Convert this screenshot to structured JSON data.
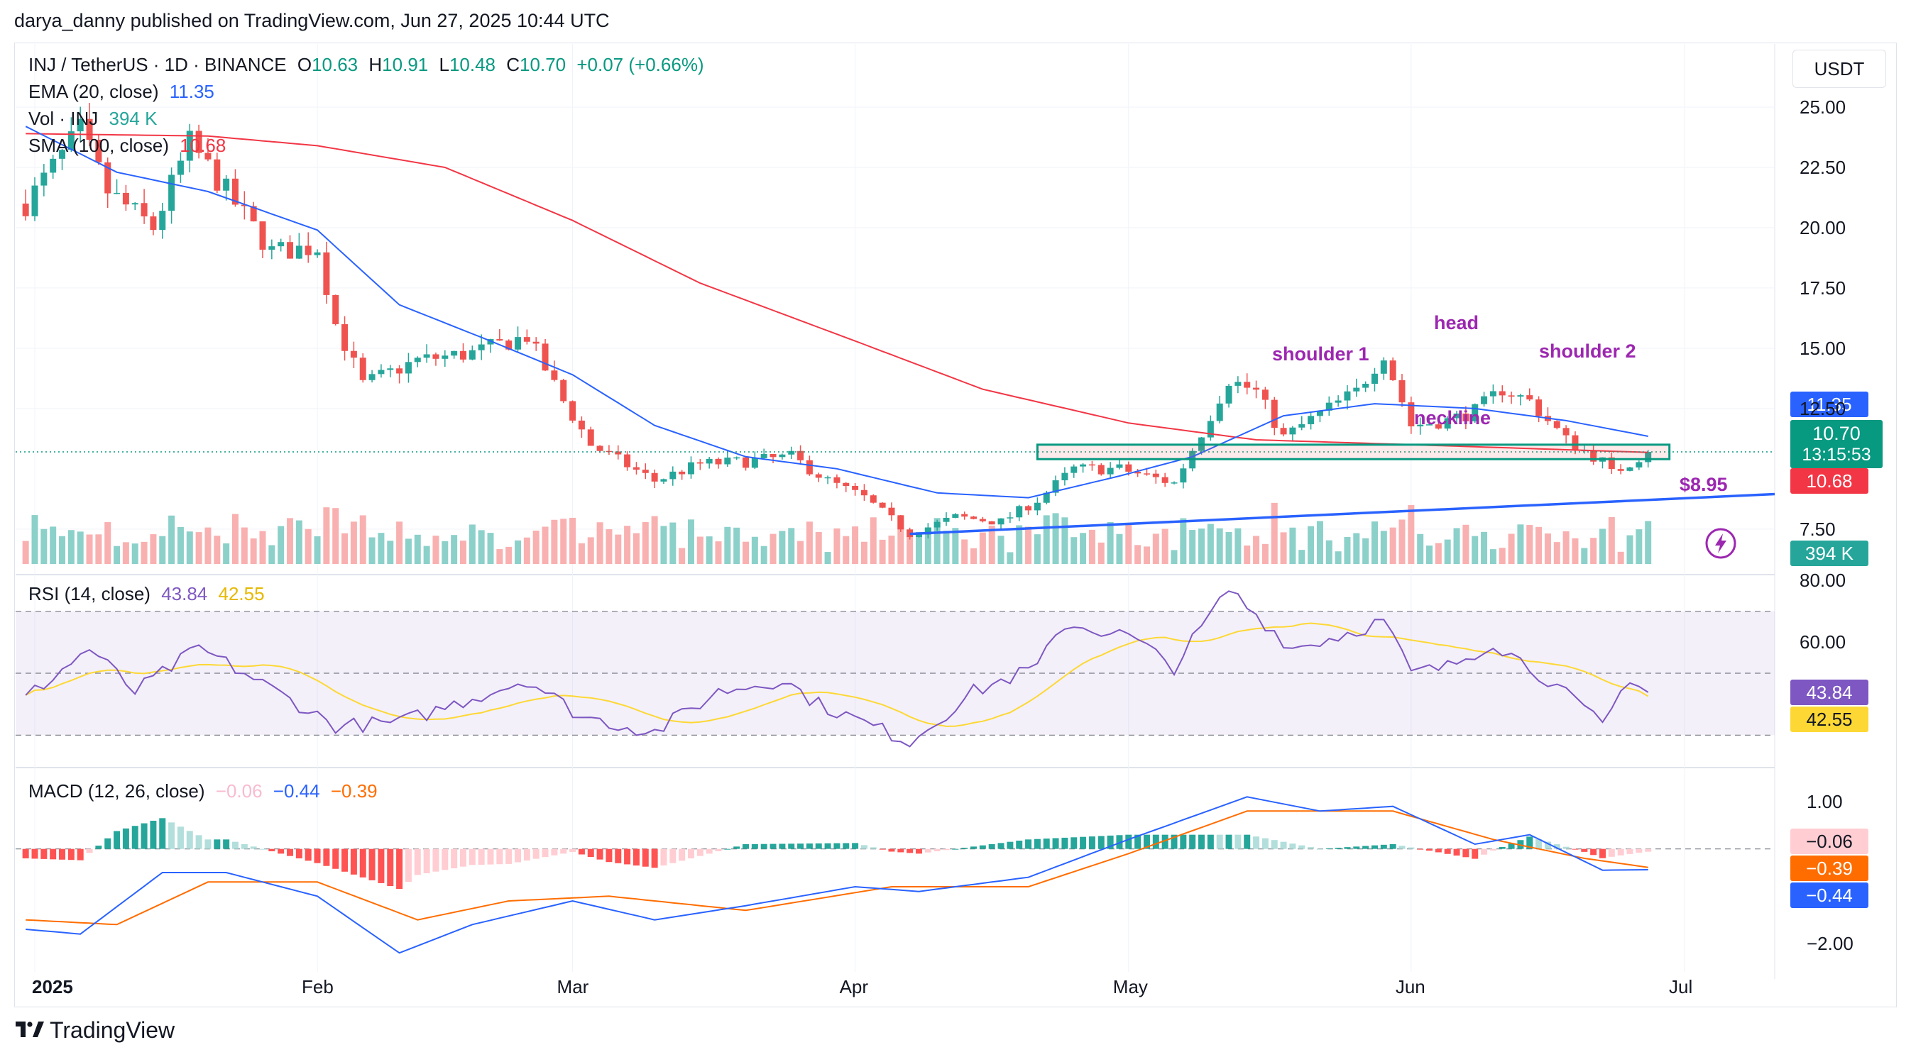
{
  "credit": "darya_danny published on TradingView.com, Jun 27, 2025 10:44 UTC",
  "currency_button": "USDT",
  "brand": "TradingView",
  "legend": {
    "symbol": "INJ / TetherUS · 1D · BINANCE",
    "o_label": "O",
    "o": "10.63",
    "h_label": "H",
    "h": "10.91",
    "l_label": "L",
    "l": "10.48",
    "c_label": "C",
    "c": "10.70",
    "change": "+0.07 (+0.66%)",
    "ema_label": "EMA (20, close)",
    "ema_value": "11.35",
    "vol_label": "Vol · INJ",
    "vol_value": "394 K",
    "sma_label": "SMA (100, close)",
    "sma_value": "10.68",
    "rsi_label": "RSI (14, close)",
    "rsi_value": "43.84",
    "rsi_ma_value": "42.55",
    "macd_label": "MACD (12, 26, close)",
    "macd_hist": "−0.06",
    "macd_line": "−0.44",
    "macd_signal": "−0.39"
  },
  "annotations": {
    "shoulder1": "shoulder 1",
    "head": "head",
    "shoulder2": "shoulder 2",
    "neckline": "neckline",
    "low_price": "$8.95"
  },
  "price_pills": {
    "ema": "11.35",
    "close": "10.70",
    "countdown": "13:15:53",
    "sma": "10.68",
    "volume": "394 K",
    "rsi": "43.84",
    "rsi_ma": "42.55",
    "macd_hist": "−0.06",
    "macd_signal": "−0.39",
    "macd_line": "−0.44"
  },
  "colors": {
    "up": "#26a69a",
    "down": "#ef5350",
    "ema": "#2962ff",
    "sma": "#f23645",
    "rsi": "#7e57c2",
    "rsi_ma": "#fdd835",
    "macd": "#2962ff",
    "signal": "#ff6d00",
    "annotation": "#9c27b0",
    "box": "#089981",
    "trendline": "#2962ff"
  },
  "chart_data": [
    {
      "type": "candlestick",
      "title": "INJ / TetherUS · 1D · BINANCE",
      "x_axis_labels": [
        "2025",
        "Feb",
        "Mar",
        "Apr",
        "May",
        "Jun",
        "Jul"
      ],
      "y_axis_labels": [
        "25.00",
        "22.50",
        "20.00",
        "17.50",
        "15.00",
        "12.50",
        "7.50"
      ],
      "ylim": [
        6.2,
        26.5
      ],
      "anchors_close": [
        [
          "2024-12-31",
          21.0
        ],
        [
          "2025-01-06",
          24.0
        ],
        [
          "2025-01-09",
          21.5
        ],
        [
          "2025-01-14",
          20.0
        ],
        [
          "2025-01-18",
          23.5
        ],
        [
          "2025-01-22",
          21.5
        ],
        [
          "2025-01-27",
          19.0
        ],
        [
          "2025-02-01",
          19.2
        ],
        [
          "2025-02-03",
          16.0
        ],
        [
          "2025-02-06",
          13.5
        ],
        [
          "2025-02-12",
          14.5
        ],
        [
          "2025-02-18",
          14.8
        ],
        [
          "2025-02-24",
          15.5
        ],
        [
          "2025-02-28",
          12.8
        ],
        [
          "2025-03-03",
          11.0
        ],
        [
          "2025-03-10",
          9.5
        ],
        [
          "2025-03-15",
          10.2
        ],
        [
          "2025-03-20",
          10.3
        ],
        [
          "2025-03-25",
          10.5
        ],
        [
          "2025-03-29",
          9.5
        ],
        [
          "2025-04-02",
          8.8
        ],
        [
          "2025-04-07",
          7.3
        ],
        [
          "2025-04-12",
          8.0
        ],
        [
          "2025-04-17",
          7.8
        ],
        [
          "2025-04-21",
          8.7
        ],
        [
          "2025-04-25",
          10.0
        ],
        [
          "2025-04-30",
          10.0
        ],
        [
          "2025-05-06",
          9.4
        ],
        [
          "2025-05-09",
          11.5
        ],
        [
          "2025-05-12",
          13.7
        ],
        [
          "2025-05-15",
          13.2
        ],
        [
          "2025-05-18",
          11.3
        ],
        [
          "2025-05-22",
          12.3
        ],
        [
          "2025-05-26",
          13.2
        ],
        [
          "2025-05-29",
          14.8
        ],
        [
          "2025-06-01",
          11.8
        ],
        [
          "2025-06-05",
          12.0
        ],
        [
          "2025-06-08",
          12.4
        ],
        [
          "2025-06-11",
          13.3
        ],
        [
          "2025-06-14",
          12.8
        ],
        [
          "2025-06-18",
          11.2
        ],
        [
          "2025-06-22",
          10.3
        ],
        [
          "2025-06-23",
          9.8
        ],
        [
          "2025-06-27",
          10.7
        ]
      ],
      "ema20": [
        [
          "2024-12-31",
          24.2
        ],
        [
          "2025-01-10",
          22.3
        ],
        [
          "2025-01-20",
          21.5
        ],
        [
          "2025-02-01",
          19.9
        ],
        [
          "2025-02-10",
          16.8
        ],
        [
          "2025-02-20",
          15.3
        ],
        [
          "2025-03-01",
          13.9
        ],
        [
          "2025-03-10",
          11.8
        ],
        [
          "2025-03-20",
          10.5
        ],
        [
          "2025-03-30",
          10.0
        ],
        [
          "2025-04-10",
          9.0
        ],
        [
          "2025-04-20",
          8.8
        ],
        [
          "2025-04-30",
          9.7
        ],
        [
          "2025-05-08",
          10.5
        ],
        [
          "2025-05-18",
          12.2
        ],
        [
          "2025-05-28",
          12.7
        ],
        [
          "2025-06-08",
          12.5
        ],
        [
          "2025-06-18",
          12.0
        ],
        [
          "2025-06-27",
          11.35
        ]
      ],
      "sma100": [
        [
          "2024-12-31",
          23.9
        ],
        [
          "2025-01-20",
          23.8
        ],
        [
          "2025-02-01",
          23.4
        ],
        [
          "2025-02-15",
          22.5
        ],
        [
          "2025-03-01",
          20.3
        ],
        [
          "2025-03-15",
          17.7
        ],
        [
          "2025-04-01",
          15.3
        ],
        [
          "2025-04-15",
          13.3
        ],
        [
          "2025-05-01",
          11.9
        ],
        [
          "2025-05-15",
          11.2
        ],
        [
          "2025-06-01",
          11.0
        ],
        [
          "2025-06-27",
          10.68
        ]
      ],
      "neckline_box": {
        "from": "2025-04-21",
        "to": "2025-06-27",
        "low": 10.4,
        "high": 11.0
      },
      "trendline": {
        "from": [
          "2025-04-07",
          7.3
        ],
        "to": [
          "2025-06-30",
          8.95
        ]
      },
      "last_close": 10.7
    },
    {
      "type": "bar",
      "title": "Vol · INJ",
      "last_value": "394 K"
    },
    {
      "type": "line",
      "title": "RSI (14, close)",
      "y_axis_labels": [
        "80.00",
        "60.00"
      ],
      "ylim": [
        20,
        80
      ],
      "bands": [
        70,
        50,
        30
      ],
      "rsi_anchors": [
        [
          "2024-12-31",
          42
        ],
        [
          "2025-01-07",
          58
        ],
        [
          "2025-01-12",
          44
        ],
        [
          "2025-01-19",
          58
        ],
        [
          "2025-01-24",
          50
        ],
        [
          "2025-02-03",
          33
        ],
        [
          "2025-02-10",
          34
        ],
        [
          "2025-02-18",
          42
        ],
        [
          "2025-02-24",
          48
        ],
        [
          "2025-03-02",
          36
        ],
        [
          "2025-03-10",
          31
        ],
        [
          "2025-03-17",
          44
        ],
        [
          "2025-03-24",
          48
        ],
        [
          "2025-03-28",
          40
        ],
        [
          "2025-04-07",
          28
        ],
        [
          "2025-04-14",
          44
        ],
        [
          "2025-04-21",
          52
        ],
        [
          "2025-04-24",
          66
        ],
        [
          "2025-05-01",
          62
        ],
        [
          "2025-05-06",
          52
        ],
        [
          "2025-05-12",
          77
        ],
        [
          "2025-05-19",
          58
        ],
        [
          "2025-05-24",
          62
        ],
        [
          "2025-05-29",
          67
        ],
        [
          "2025-06-01",
          50
        ],
        [
          "2025-06-05",
          52
        ],
        [
          "2025-06-10",
          60
        ],
        [
          "2025-06-16",
          48
        ],
        [
          "2025-06-22",
          33
        ],
        [
          "2025-06-25",
          49
        ],
        [
          "2025-06-27",
          43.84
        ]
      ],
      "rsi_ma_last": 42.55
    },
    {
      "type": "line",
      "title": "MACD (12, 26, close)",
      "y_axis_labels": [
        "1.00",
        "−2.00"
      ],
      "ylim": [
        -2.6,
        1.6
      ],
      "macd_anchors": [
        [
          "2024-12-31",
          -1.7
        ],
        [
          "2025-01-06",
          -1.8
        ],
        [
          "2025-01-15",
          -0.5
        ],
        [
          "2025-01-22",
          -0.5
        ],
        [
          "2025-02-01",
          -1.0
        ],
        [
          "2025-02-10",
          -2.2
        ],
        [
          "2025-02-18",
          -1.6
        ],
        [
          "2025-03-01",
          -1.1
        ],
        [
          "2025-03-10",
          -1.5
        ],
        [
          "2025-03-20",
          -1.2
        ],
        [
          "2025-04-01",
          -0.8
        ],
        [
          "2025-04-08",
          -0.9
        ],
        [
          "2025-04-20",
          -0.6
        ],
        [
          "2025-05-01",
          0.2
        ],
        [
          "2025-05-14",
          1.1
        ],
        [
          "2025-05-22",
          0.8
        ],
        [
          "2025-05-30",
          0.9
        ],
        [
          "2025-06-08",
          0.1
        ],
        [
          "2025-06-14",
          0.3
        ],
        [
          "2025-06-22",
          -0.45
        ],
        [
          "2025-06-27",
          -0.44
        ]
      ],
      "signal_anchors": [
        [
          "2024-12-31",
          -1.5
        ],
        [
          "2025-01-10",
          -1.6
        ],
        [
          "2025-01-20",
          -0.7
        ],
        [
          "2025-02-01",
          -0.7
        ],
        [
          "2025-02-12",
          -1.5
        ],
        [
          "2025-02-22",
          -1.1
        ],
        [
          "2025-03-05",
          -1.0
        ],
        [
          "2025-03-20",
          -1.3
        ],
        [
          "2025-04-05",
          -0.8
        ],
        [
          "2025-04-20",
          -0.8
        ],
        [
          "2025-05-01",
          -0.1
        ],
        [
          "2025-05-14",
          0.8
        ],
        [
          "2025-05-30",
          0.8
        ],
        [
          "2025-06-10",
          0.2
        ],
        [
          "2025-06-20",
          -0.2
        ],
        [
          "2025-06-27",
          -0.39
        ]
      ],
      "hist_last": -0.06
    }
  ]
}
